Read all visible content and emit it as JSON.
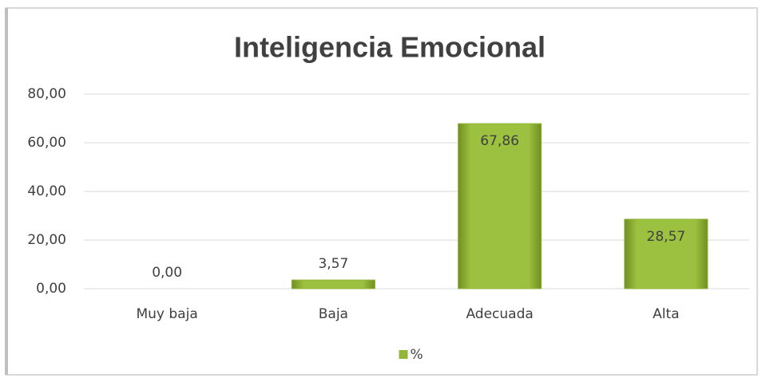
{
  "chart_data": {
    "type": "bar",
    "title": "Inteligencia Emocional",
    "categories": [
      "Muy baja",
      "Baja",
      "Adecuada",
      "Alta"
    ],
    "series": [
      {
        "name": "%",
        "color": "#92b53a",
        "values": [
          0,
          3.57,
          67.86,
          28.57
        ],
        "value_labels": [
          "0,00",
          "3,57",
          "67,86",
          "28,57"
        ]
      }
    ],
    "ylim": [
      0,
      80
    ],
    "yticks": [
      {
        "value": 0,
        "label": "0,00"
      },
      {
        "value": 20,
        "label": "20,00"
      },
      {
        "value": 40,
        "label": "40,00"
      },
      {
        "value": 60,
        "label": "60,00"
      },
      {
        "value": 80,
        "label": "80,00"
      }
    ],
    "grid": true,
    "legend": "bottom"
  }
}
